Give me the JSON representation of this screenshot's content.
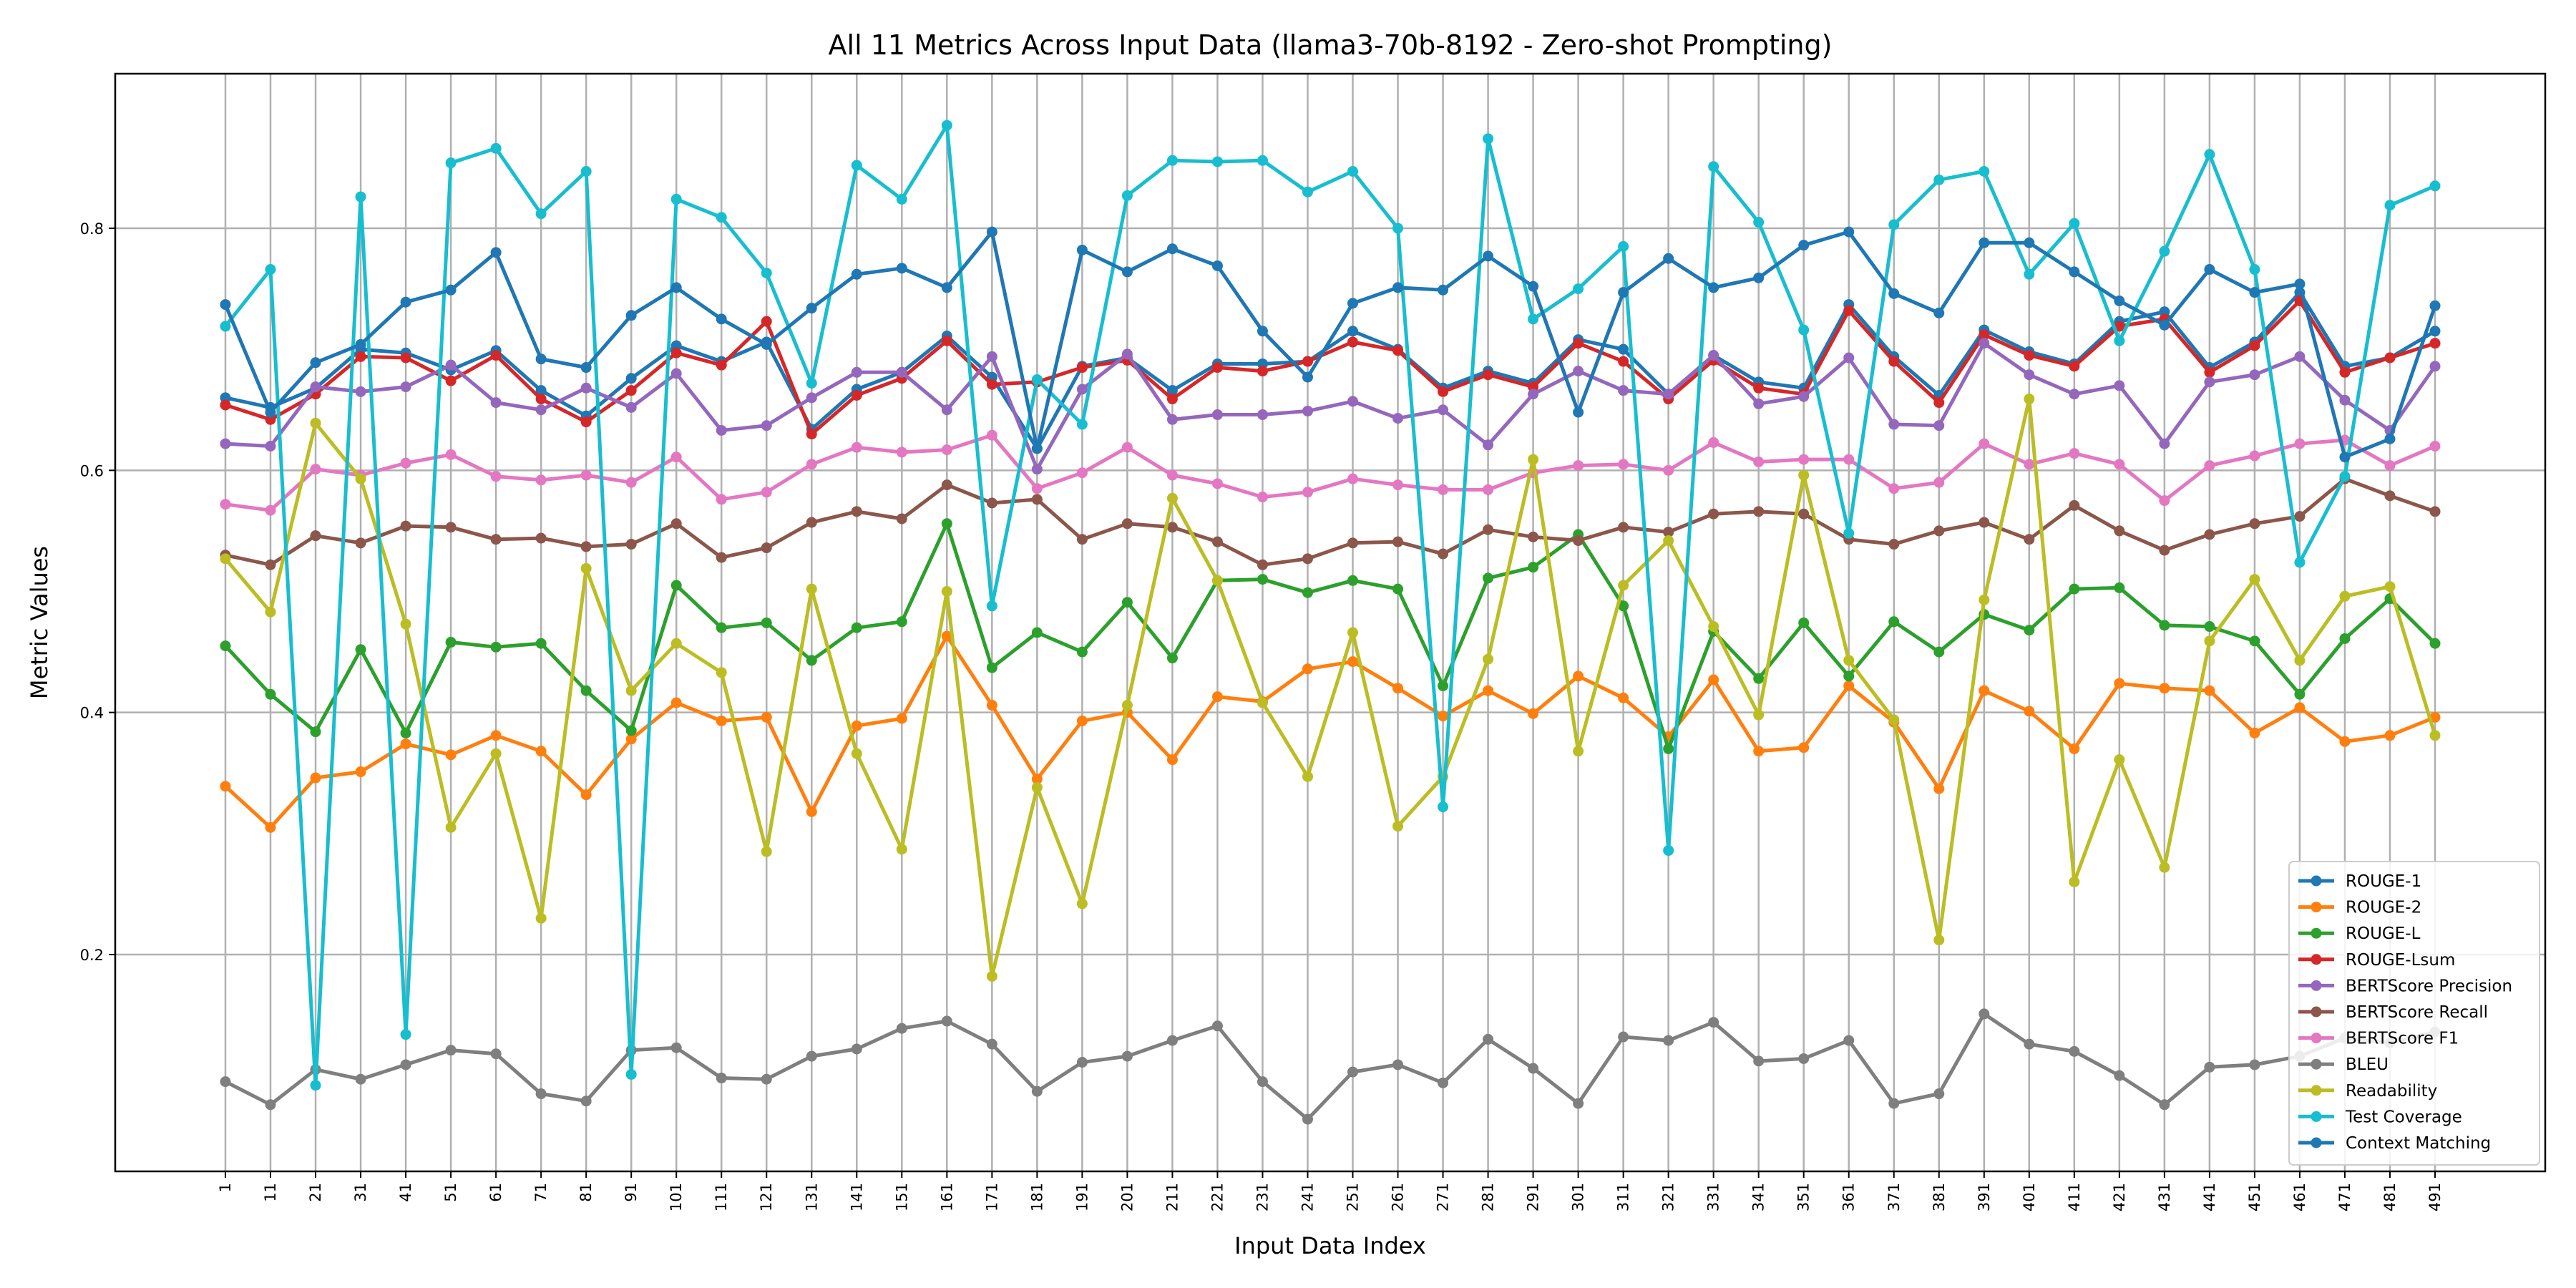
{
  "chart_data": {
    "type": "line",
    "title": "All 11 Metrics Across Input Data (llama3-70b-8192 - Zero-shot Prompting)",
    "xlabel": "Input Data Index",
    "ylabel": "Metric Values",
    "ylim": [
      0.03,
      0.93
    ],
    "yticks": [
      0.2,
      0.4,
      0.6,
      0.8
    ],
    "grid": true,
    "legend_position": "lower-right",
    "x": [
      1,
      11,
      21,
      31,
      41,
      51,
      61,
      71,
      81,
      91,
      101,
      111,
      121,
      131,
      141,
      151,
      161,
      171,
      181,
      191,
      201,
      211,
      221,
      231,
      241,
      251,
      261,
      271,
      281,
      291,
      301,
      311,
      321,
      331,
      341,
      351,
      361,
      371,
      381,
      391,
      401,
      411,
      421,
      431,
      441,
      451,
      461,
      471,
      481,
      491
    ],
    "series": [
      {
        "name": "ROUGE-1",
        "color": "#1f77b4",
        "values": [
          0.66,
          0.652,
          0.668,
          0.7,
          0.697,
          0.683,
          0.699,
          0.666,
          0.645,
          0.676,
          0.703,
          0.69,
          0.706,
          0.634,
          0.667,
          0.681,
          0.711,
          0.677,
          0.618,
          0.686,
          0.693,
          0.666,
          0.688,
          0.688,
          0.69,
          0.715,
          0.7,
          0.668,
          0.682,
          0.672,
          0.708,
          0.7,
          0.663,
          0.695,
          0.673,
          0.668,
          0.737,
          0.694,
          0.662,
          0.716,
          0.698,
          0.688,
          0.723,
          0.731,
          0.685,
          0.706,
          0.747,
          0.686,
          0.693,
          0.715
        ]
      },
      {
        "name": "ROUGE-2",
        "color": "#ff7f0e",
        "values": [
          0.339,
          0.305,
          0.346,
          0.351,
          0.374,
          0.365,
          0.381,
          0.368,
          0.332,
          0.378,
          0.408,
          0.393,
          0.396,
          0.318,
          0.389,
          0.395,
          0.463,
          0.406,
          0.345,
          0.393,
          0.4,
          0.361,
          0.413,
          0.409,
          0.436,
          0.442,
          0.42,
          0.397,
          0.418,
          0.399,
          0.43,
          0.412,
          0.38,
          0.427,
          0.368,
          0.371,
          0.422,
          0.392,
          0.337,
          0.418,
          0.401,
          0.37,
          0.424,
          0.42,
          0.418,
          0.383,
          0.404,
          0.376,
          0.381,
          0.396
        ]
      },
      {
        "name": "ROUGE-L",
        "color": "#2ca02c",
        "values": [
          0.455,
          0.415,
          0.384,
          0.452,
          0.383,
          0.458,
          0.454,
          0.457,
          0.418,
          0.385,
          0.505,
          0.47,
          0.474,
          0.443,
          0.47,
          0.475,
          0.556,
          0.437,
          0.466,
          0.45,
          0.491,
          0.445,
          0.509,
          0.51,
          0.499,
          0.509,
          0.502,
          0.422,
          0.511,
          0.52,
          0.547,
          0.488,
          0.37,
          0.467,
          0.428,
          0.474,
          0.43,
          0.475,
          0.45,
          0.481,
          0.468,
          0.502,
          0.503,
          0.472,
          0.471,
          0.459,
          0.415,
          0.461,
          0.494,
          0.457
        ]
      },
      {
        "name": "ROUGE-Lsum",
        "color": "#d62728",
        "values": [
          0.654,
          0.642,
          0.663,
          0.694,
          0.693,
          0.674,
          0.695,
          0.659,
          0.64,
          0.666,
          0.697,
          0.687,
          0.723,
          0.63,
          0.662,
          0.676,
          0.707,
          0.671,
          0.673,
          0.685,
          0.691,
          0.659,
          0.685,
          0.682,
          0.69,
          0.706,
          0.699,
          0.665,
          0.679,
          0.669,
          0.705,
          0.69,
          0.659,
          0.691,
          0.668,
          0.663,
          0.732,
          0.69,
          0.656,
          0.712,
          0.695,
          0.686,
          0.719,
          0.725,
          0.681,
          0.703,
          0.74,
          0.681,
          0.693,
          0.705
        ]
      },
      {
        "name": "BERTScore Precision",
        "color": "#9467bd",
        "values": [
          0.622,
          0.62,
          0.669,
          0.665,
          0.669,
          0.687,
          0.656,
          0.65,
          0.668,
          0.652,
          0.68,
          0.633,
          0.637,
          0.66,
          0.681,
          0.681,
          0.65,
          0.694,
          0.601,
          0.667,
          0.696,
          0.642,
          0.646,
          0.646,
          0.649,
          0.657,
          0.643,
          0.65,
          0.621,
          0.663,
          0.682,
          0.666,
          0.663,
          0.695,
          0.655,
          0.661,
          0.693,
          0.638,
          0.637,
          0.705,
          0.679,
          0.663,
          0.67,
          0.622,
          0.673,
          0.679,
          0.694,
          0.658,
          0.633,
          0.686
        ]
      },
      {
        "name": "BERTScore Recall",
        "color": "#8c564b",
        "values": [
          0.53,
          0.522,
          0.546,
          0.54,
          0.554,
          0.553,
          0.543,
          0.544,
          0.537,
          0.539,
          0.556,
          0.528,
          0.536,
          0.557,
          0.566,
          0.56,
          0.588,
          0.573,
          0.576,
          0.543,
          0.556,
          0.553,
          0.541,
          0.522,
          0.527,
          0.54,
          0.541,
          0.531,
          0.551,
          0.545,
          0.542,
          0.553,
          0.549,
          0.564,
          0.566,
          0.564,
          0.543,
          0.539,
          0.55,
          0.557,
          0.543,
          0.571,
          0.55,
          0.534,
          0.547,
          0.556,
          0.562,
          0.593,
          0.579,
          0.566
        ]
      },
      {
        "name": "BERTScore F1",
        "color": "#e377c2",
        "values": [
          0.572,
          0.567,
          0.601,
          0.596,
          0.606,
          0.613,
          0.595,
          0.592,
          0.596,
          0.59,
          0.611,
          0.576,
          0.582,
          0.605,
          0.619,
          0.615,
          0.617,
          0.629,
          0.585,
          0.598,
          0.619,
          0.596,
          0.589,
          0.578,
          0.582,
          0.593,
          0.588,
          0.584,
          0.584,
          0.598,
          0.604,
          0.605,
          0.6,
          0.623,
          0.607,
          0.609,
          0.609,
          0.585,
          0.59,
          0.622,
          0.605,
          0.614,
          0.605,
          0.575,
          0.604,
          0.612,
          0.622,
          0.625,
          0.604,
          0.62
        ]
      },
      {
        "name": "BLEU",
        "color": "#7f7f7f",
        "values": [
          0.095,
          0.076,
          0.105,
          0.097,
          0.109,
          0.121,
          0.118,
          0.085,
          0.079,
          0.121,
          0.123,
          0.098,
          0.097,
          0.116,
          0.122,
          0.139,
          0.145,
          0.126,
          0.087,
          0.111,
          0.116,
          0.129,
          0.141,
          0.095,
          0.064,
          0.103,
          0.109,
          0.094,
          0.13,
          0.106,
          0.077,
          0.132,
          0.129,
          0.144,
          0.112,
          0.114,
          0.129,
          0.077,
          0.085,
          0.151,
          0.126,
          0.12,
          0.1,
          0.076,
          0.107,
          0.109,
          0.116,
          0.131,
          0.127,
          0.136
        ]
      },
      {
        "name": "Readability",
        "color": "#bcbd22",
        "values": [
          0.527,
          0.483,
          0.639,
          0.593,
          0.473,
          0.305,
          0.366,
          0.23,
          0.519,
          0.418,
          0.457,
          0.433,
          0.285,
          0.502,
          0.366,
          0.287,
          0.5,
          0.182,
          0.338,
          0.242,
          0.406,
          0.577,
          0.509,
          0.408,
          0.347,
          0.466,
          0.306,
          0.347,
          0.444,
          0.609,
          0.368,
          0.505,
          0.542,
          0.471,
          0.398,
          0.596,
          0.443,
          0.394,
          0.212,
          0.493,
          0.659,
          0.26,
          0.361,
          0.272,
          0.459,
          0.51,
          0.443,
          0.496,
          0.504,
          0.381
        ]
      },
      {
        "name": "Test Coverage",
        "color": "#17becf",
        "values": [
          0.719,
          0.766,
          0.092,
          0.826,
          0.134,
          0.854,
          0.866,
          0.812,
          0.847,
          0.101,
          0.824,
          0.809,
          0.763,
          0.672,
          0.852,
          0.824,
          0.885,
          0.488,
          0.675,
          0.638,
          0.827,
          0.856,
          0.855,
          0.856,
          0.83,
          0.847,
          0.8,
          0.322,
          0.874,
          0.725,
          0.75,
          0.785,
          0.286,
          0.851,
          0.805,
          0.716,
          0.548,
          0.803,
          0.84,
          0.847,
          0.762,
          0.804,
          0.707,
          0.781,
          0.861,
          0.766,
          0.524,
          0.595,
          0.819,
          0.835
        ]
      },
      {
        "name": "Context Matching",
        "color": "#1f77b4",
        "values": [
          0.737,
          0.648,
          0.689,
          0.704,
          0.739,
          0.749,
          0.78,
          0.692,
          0.685,
          0.728,
          0.751,
          0.725,
          0.704,
          0.734,
          0.762,
          0.767,
          0.751,
          0.797,
          0.618,
          0.782,
          0.764,
          0.783,
          0.769,
          0.715,
          0.677,
          0.738,
          0.751,
          0.749,
          0.777,
          0.752,
          0.648,
          0.747,
          0.775,
          0.751,
          0.759,
          0.786,
          0.797,
          0.746,
          0.73,
          0.788,
          0.788,
          0.764,
          0.74,
          0.72,
          0.766,
          0.747,
          0.754,
          0.611,
          0.626,
          0.736
        ]
      }
    ]
  }
}
